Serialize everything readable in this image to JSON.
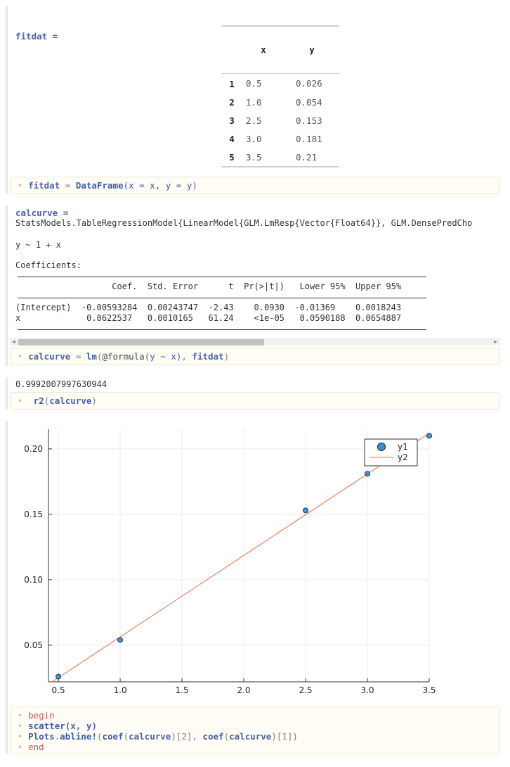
{
  "cell1": {
    "output_label": "fitdat =",
    "table": {
      "columns": [
        "",
        "x",
        "y"
      ],
      "rows": [
        [
          "1",
          "0.5",
          "0.026"
        ],
        [
          "2",
          "1.0",
          "0.054"
        ],
        [
          "3",
          "2.5",
          "0.153"
        ],
        [
          "4",
          "3.0",
          "0.181"
        ],
        [
          "5",
          "3.5",
          "0.21"
        ]
      ]
    },
    "code": {
      "var": "fitdat",
      "op": "=",
      "fn": "DataFrame",
      "args": "(x = x, y = y)"
    }
  },
  "cell2": {
    "output_label": "calcurve =",
    "model_type": "StatsModels.TableRegressionModel{LinearModel{GLM.LmResp{Vector{Float64}}, GLM.DensePredCho",
    "formula": "y ~ 1 + x",
    "coef_heading": "Coefficients:",
    "coef_header": "                   Coef.  Std. Error      t  Pr(>|t|)   Lower 95%  Upper 95%",
    "coef_rows": [
      "(Intercept)  -0.00593284  0.00243747  -2.43    0.0930  -0.01369    0.0018243",
      "x             0.0622537   0.0010165   61.24    <1e-05   0.0590188  0.0654887"
    ],
    "code": {
      "var": "calcurve",
      "op": "=",
      "fn": "lm",
      "macro": "@formula",
      "formula_args": "(y ~ x)",
      "data_arg": "fitdat"
    }
  },
  "cell3": {
    "output": "0.9992007997630944",
    "code": {
      "fn": "r2",
      "arg": "calcurve"
    }
  },
  "cell4": {
    "code": {
      "line1": "begin",
      "line2_fn": "scatter",
      "line2_args": "(x, y)",
      "line3_mod": "Plots",
      "line3_fn": "abline!",
      "line3_coef": "coef",
      "line3_arg": "calcurve",
      "line3_idx1": "[2]",
      "line3_idx2": "[1]",
      "line4": "end"
    }
  },
  "chart_data": {
    "type": "scatter",
    "series": [
      {
        "name": "y1",
        "kind": "scatter",
        "color": "#3f8fd8",
        "x": [
          0.5,
          1.0,
          2.5,
          3.0,
          3.5
        ],
        "y": [
          0.026,
          0.054,
          0.153,
          0.181,
          0.21
        ]
      },
      {
        "name": "y2",
        "kind": "line",
        "color": "#e26f46",
        "slope": 0.0622537,
        "intercept": -0.00593284
      }
    ],
    "xlim": [
      0.42,
      3.5
    ],
    "ylim": [
      0.022,
      0.215
    ],
    "xticks": [
      "0.5",
      "1.0",
      "1.5",
      "2.0",
      "2.5",
      "3.0",
      "3.5"
    ],
    "yticks": [
      "0.05",
      "0.10",
      "0.15",
      "0.20"
    ],
    "grid": true,
    "legend": "top-right",
    "title": "",
    "xlabel": "",
    "ylabel": ""
  }
}
